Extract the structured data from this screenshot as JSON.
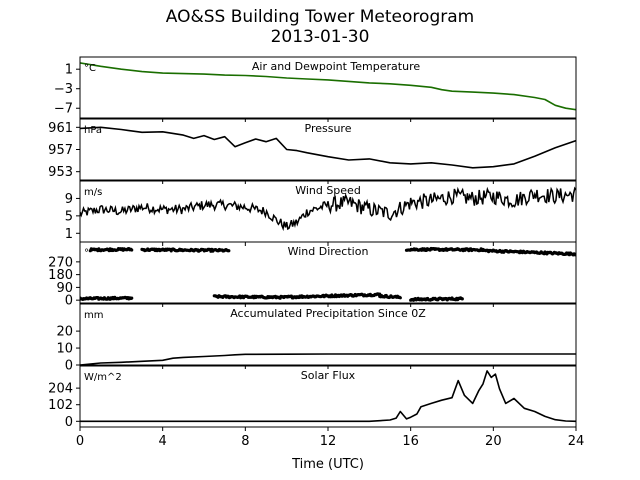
{
  "figure": {
    "title_line1": "AO&SS Building Tower Meteorogram",
    "title_line2": "2013-01-30",
    "xlabel": "Time (UTC)"
  },
  "colors": {
    "temperature": "#1a6e00",
    "dewpoint": "#0000ff",
    "ink": "#000000"
  },
  "chart_data": {
    "type": "line",
    "x_axis": {
      "label": "Time (UTC)",
      "range": [
        0,
        24
      ],
      "ticks": [
        0,
        4,
        8,
        12,
        16,
        20,
        24
      ],
      "tick_labels": [
        "0",
        "4",
        "8",
        "12",
        "16",
        "20",
        "24"
      ]
    },
    "panels": [
      {
        "id": "temperature",
        "title": "Air and Dewpoint Temperature",
        "unit": "°C",
        "ylim": [
          -9,
          3.5
        ],
        "yticks": [
          1,
          -3,
          -7
        ],
        "ytick_labels": [
          "1",
          "−3",
          "−7"
        ],
        "style": "line",
        "color_key": "temperature",
        "series": [
          {
            "x": [
              0,
              1,
              2,
              3,
              4,
              5,
              6,
              7,
              8,
              9,
              10,
              11,
              12,
              13,
              14,
              15,
              16,
              17,
              17.5,
              18,
              19,
              20,
              21,
              22,
              22.5,
              23,
              23.5,
              24
            ],
            "y": [
              2.3,
              1.6,
              1.0,
              0.5,
              0.2,
              0.1,
              0.0,
              -0.2,
              -0.3,
              -0.5,
              -0.8,
              -1.0,
              -1.2,
              -1.5,
              -1.8,
              -2.0,
              -2.3,
              -2.7,
              -3.2,
              -3.5,
              -3.7,
              -3.9,
              -4.2,
              -4.8,
              -5.2,
              -6.4,
              -7.0,
              -7.3
            ]
          }
        ]
      },
      {
        "id": "pressure",
        "title": "Pressure",
        "unit": "hPa",
        "ylim": [
          951.5,
          962.5
        ],
        "yticks": [
          961,
          957,
          953
        ],
        "ytick_labels": [
          "961",
          "957",
          "953"
        ],
        "style": "line",
        "color_key": "ink",
        "series": [
          {
            "x": [
              0,
              1,
              2,
              3,
              4,
              5,
              5.5,
              6,
              6.5,
              7,
              7.5,
              8,
              8.5,
              9,
              9.5,
              10,
              10.5,
              11,
              12,
              13,
              14,
              15,
              16,
              17,
              18,
              19,
              20,
              21,
              22,
              23,
              24
            ],
            "y": [
              960.8,
              961.0,
              960.6,
              960.1,
              960.2,
              959.6,
              959.0,
              959.5,
              958.8,
              959.3,
              957.5,
              958.2,
              958.9,
              958.4,
              959.0,
              957.0,
              956.8,
              956.4,
              955.7,
              955.1,
              955.3,
              954.6,
              954.4,
              954.6,
              954.2,
              953.7,
              953.9,
              954.4,
              955.8,
              957.3,
              958.6
            ]
          }
        ]
      },
      {
        "id": "wind_speed",
        "title": "Wind Speed",
        "unit": "m/s",
        "ylim": [
          -1,
          13
        ],
        "yticks": [
          9,
          5,
          1
        ],
        "ytick_labels": [
          "9",
          "5",
          "1"
        ],
        "style": "noisy-line",
        "color_key": "ink",
        "series": [
          {
            "x": [
              0,
              1,
              2,
              3,
              4,
              5,
              6,
              7,
              8,
              9,
              9.5,
              10,
              10.5,
              11,
              12,
              13,
              14,
              15,
              16,
              17,
              18,
              19,
              20,
              21,
              22,
              23,
              24
            ],
            "y": [
              5.5,
              6.5,
              6.0,
              7.0,
              6.5,
              6.5,
              7.5,
              7.5,
              7.0,
              6.0,
              4.0,
              2.5,
              3.5,
              6.0,
              7.5,
              8.0,
              6.5,
              5.5,
              8.0,
              8.5,
              9.5,
              9.0,
              9.5,
              8.5,
              10.0,
              9.5,
              10.0
            ]
          }
        ]
      },
      {
        "id": "wind_direction",
        "title": "Wind Direction",
        "unit": "°",
        "ylim": [
          -20,
          410
        ],
        "yticks": [
          270,
          180,
          90,
          0
        ],
        "ytick_labels": [
          "270",
          "180",
          "90",
          "0"
        ],
        "style": "scatter",
        "color_key": "ink",
        "segments": [
          {
            "x": [
              0.0,
              2.5
            ],
            "y": [
              10,
              15
            ]
          },
          {
            "x": [
              0.5,
              2.5
            ],
            "y": [
              355,
              358
            ]
          },
          {
            "x": [
              3.0,
              7.2
            ],
            "y": [
              356,
              350
            ]
          },
          {
            "x": [
              6.5,
              10.0
            ],
            "y": [
              25,
              20
            ]
          },
          {
            "x": [
              10.0,
              14.5
            ],
            "y": [
              22,
              40
            ]
          },
          {
            "x": [
              14.5,
              15.5
            ],
            "y": [
              30,
              20
            ]
          },
          {
            "x": [
              16.0,
              18.5
            ],
            "y": [
              5,
              10
            ]
          },
          {
            "x": [
              15.8,
              19.5
            ],
            "y": [
              358,
              355
            ]
          },
          {
            "x": [
              19.5,
              24.0
            ],
            "y": [
              350,
              325
            ]
          }
        ]
      },
      {
        "id": "precipitation",
        "title": "Accumulated Precipitation Since 0Z",
        "unit": "mm",
        "ylim": [
          0,
          36
        ],
        "yticks": [
          20,
          10,
          0
        ],
        "ytick_labels": [
          "20",
          "10",
          "0"
        ],
        "style": "line",
        "color_key": "ink",
        "series": [
          {
            "x": [
              0,
              1,
              2,
              3,
              4,
              4.5,
              5,
              6,
              7,
              7.5,
              8,
              10,
              12,
              16,
              20,
              24
            ],
            "y": [
              0.0,
              1.2,
              1.6,
              2.2,
              2.8,
              4.0,
              4.5,
              5.0,
              5.6,
              6.0,
              6.3,
              6.4,
              6.5,
              6.5,
              6.5,
              6.5
            ]
          }
        ]
      },
      {
        "id": "solar_flux",
        "title": "Solar Flux",
        "unit": "W/m^2",
        "ylim": [
          -35,
          340
        ],
        "yticks": [
          204,
          102,
          0
        ],
        "ytick_labels": [
          "204",
          "102",
          "0"
        ],
        "style": "line",
        "color_key": "ink",
        "series": [
          {
            "x": [
              0,
              14,
              14.5,
              15,
              15.3,
              15.5,
              15.8,
              16,
              16.3,
              16.5,
              17,
              17.5,
              18,
              18.3,
              18.6,
              19,
              19.3,
              19.5,
              19.7,
              19.9,
              20.1,
              20.3,
              20.6,
              21,
              21.5,
              22,
              22.5,
              23,
              23.5,
              24
            ],
            "y": [
              0,
              0,
              4,
              8,
              20,
              60,
              15,
              25,
              45,
              90,
              110,
              130,
              145,
              250,
              160,
              110,
              190,
              230,
              310,
              270,
              290,
              200,
              110,
              140,
              80,
              60,
              30,
              10,
              2,
              0
            ]
          }
        ]
      }
    ]
  }
}
